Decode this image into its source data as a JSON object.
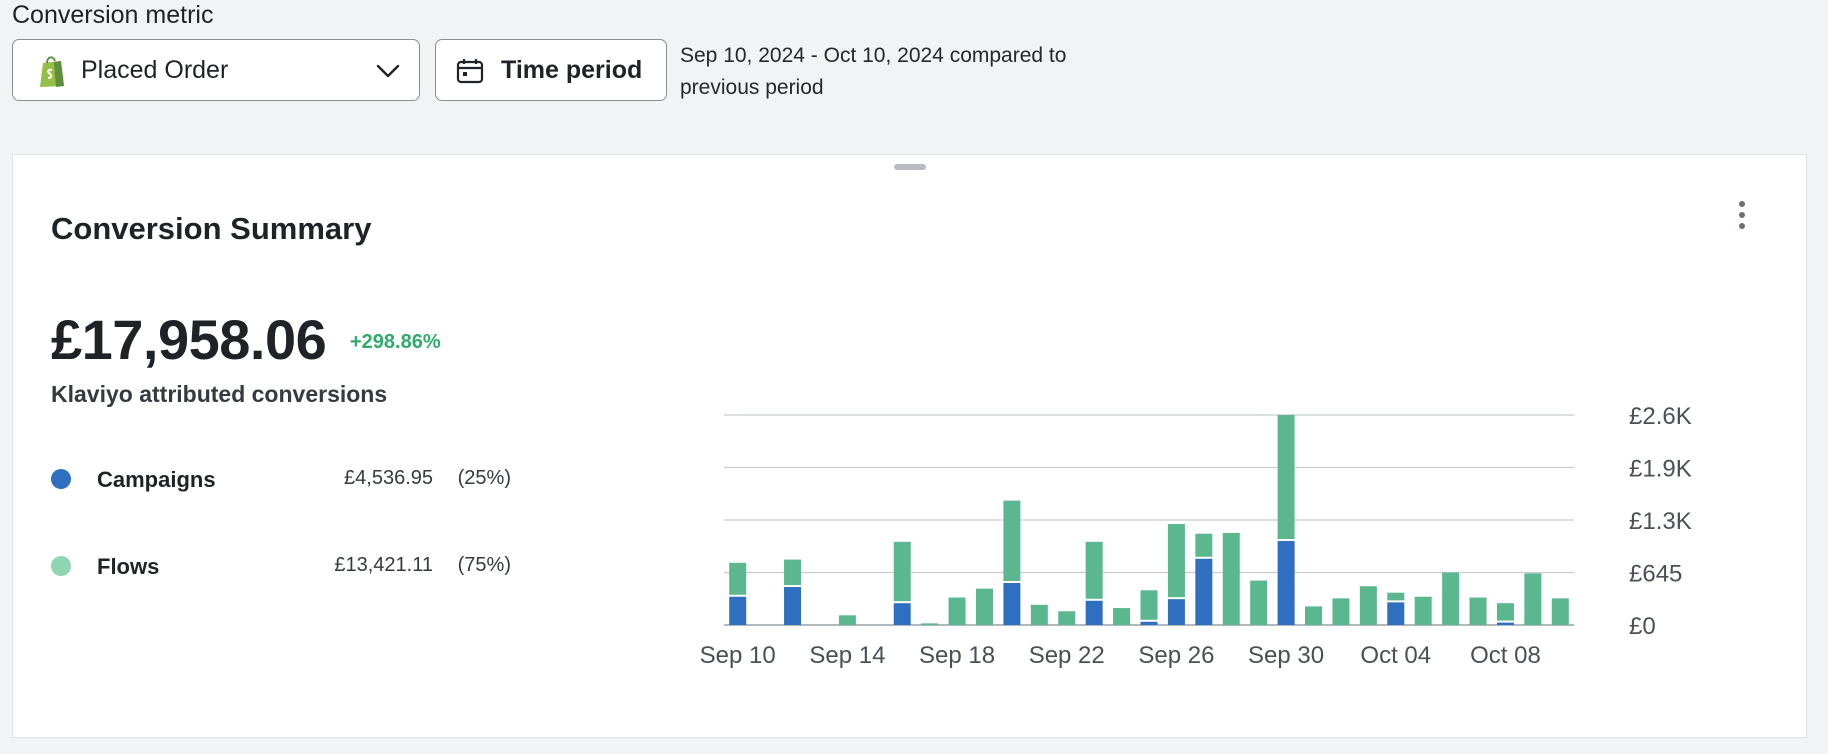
{
  "header": {
    "metric_label": "Conversion metric",
    "metric_select": {
      "value": "Placed Order",
      "icon": "shopify-bag-icon"
    },
    "time_period_button": {
      "label": "Time period",
      "icon": "calendar-icon"
    },
    "period_text": "Sep 10, 2024 - Oct 10, 2024 compared to previous period"
  },
  "card": {
    "title": "Conversion Summary",
    "menu_icon": "kebab-menu-icon",
    "total": "£17,958.06",
    "change": "+298.86%",
    "subtitle": "Klaviyo attributed conversions",
    "legend": [
      {
        "name": "Campaigns",
        "value": "£4,536.95",
        "pct": "(25%)",
        "color": "#2f6fbf"
      },
      {
        "name": "Flows",
        "value": "£13,421.11",
        "pct": "(75%)",
        "color": "#8fd4b3"
      }
    ]
  },
  "chart_data": {
    "type": "bar",
    "stacked": true,
    "x": [
      "Sep 10",
      "Sep 11",
      "Sep 12",
      "Sep 13",
      "Sep 14",
      "Sep 15",
      "Sep 16",
      "Sep 17",
      "Sep 18",
      "Sep 19",
      "Sep 20",
      "Sep 21",
      "Sep 22",
      "Sep 23",
      "Sep 24",
      "Sep 25",
      "Sep 26",
      "Sep 27",
      "Sep 28",
      "Sep 29",
      "Sep 30",
      "Oct 01",
      "Oct 02",
      "Oct 03",
      "Oct 04",
      "Oct 05",
      "Oct 06",
      "Oct 07",
      "Oct 08",
      "Oct 09",
      "Oct 10"
    ],
    "x_tick_labels": [
      "Sep 10",
      "Sep 14",
      "Sep 18",
      "Sep 22",
      "Sep 26",
      "Sep 30",
      "Oct 04",
      "Oct 08"
    ],
    "series": [
      {
        "name": "Campaigns",
        "color": "#2f6fbf",
        "values": [
          350,
          0,
          470,
          0,
          0,
          0,
          270,
          0,
          0,
          0,
          520,
          0,
          0,
          300,
          0,
          40,
          320,
          820,
          0,
          0,
          1040,
          0,
          0,
          0,
          280,
          0,
          0,
          0,
          30,
          0,
          0
        ]
      },
      {
        "name": "Flows",
        "color": "#5bb78f",
        "values": [
          420,
          0,
          340,
          0,
          120,
          0,
          760,
          20,
          340,
          450,
          1020,
          250,
          170,
          730,
          210,
          390,
          930,
          310,
          1140,
          550,
          1560,
          230,
          330,
          480,
          120,
          350,
          650,
          340,
          240,
          640,
          330
        ]
      }
    ],
    "y_tick_labels": [
      "£0",
      "£645",
      "£1.3K",
      "£1.9K",
      "£2.6K"
    ],
    "ylim": [
      0,
      2600
    ],
    "grid": true
  }
}
